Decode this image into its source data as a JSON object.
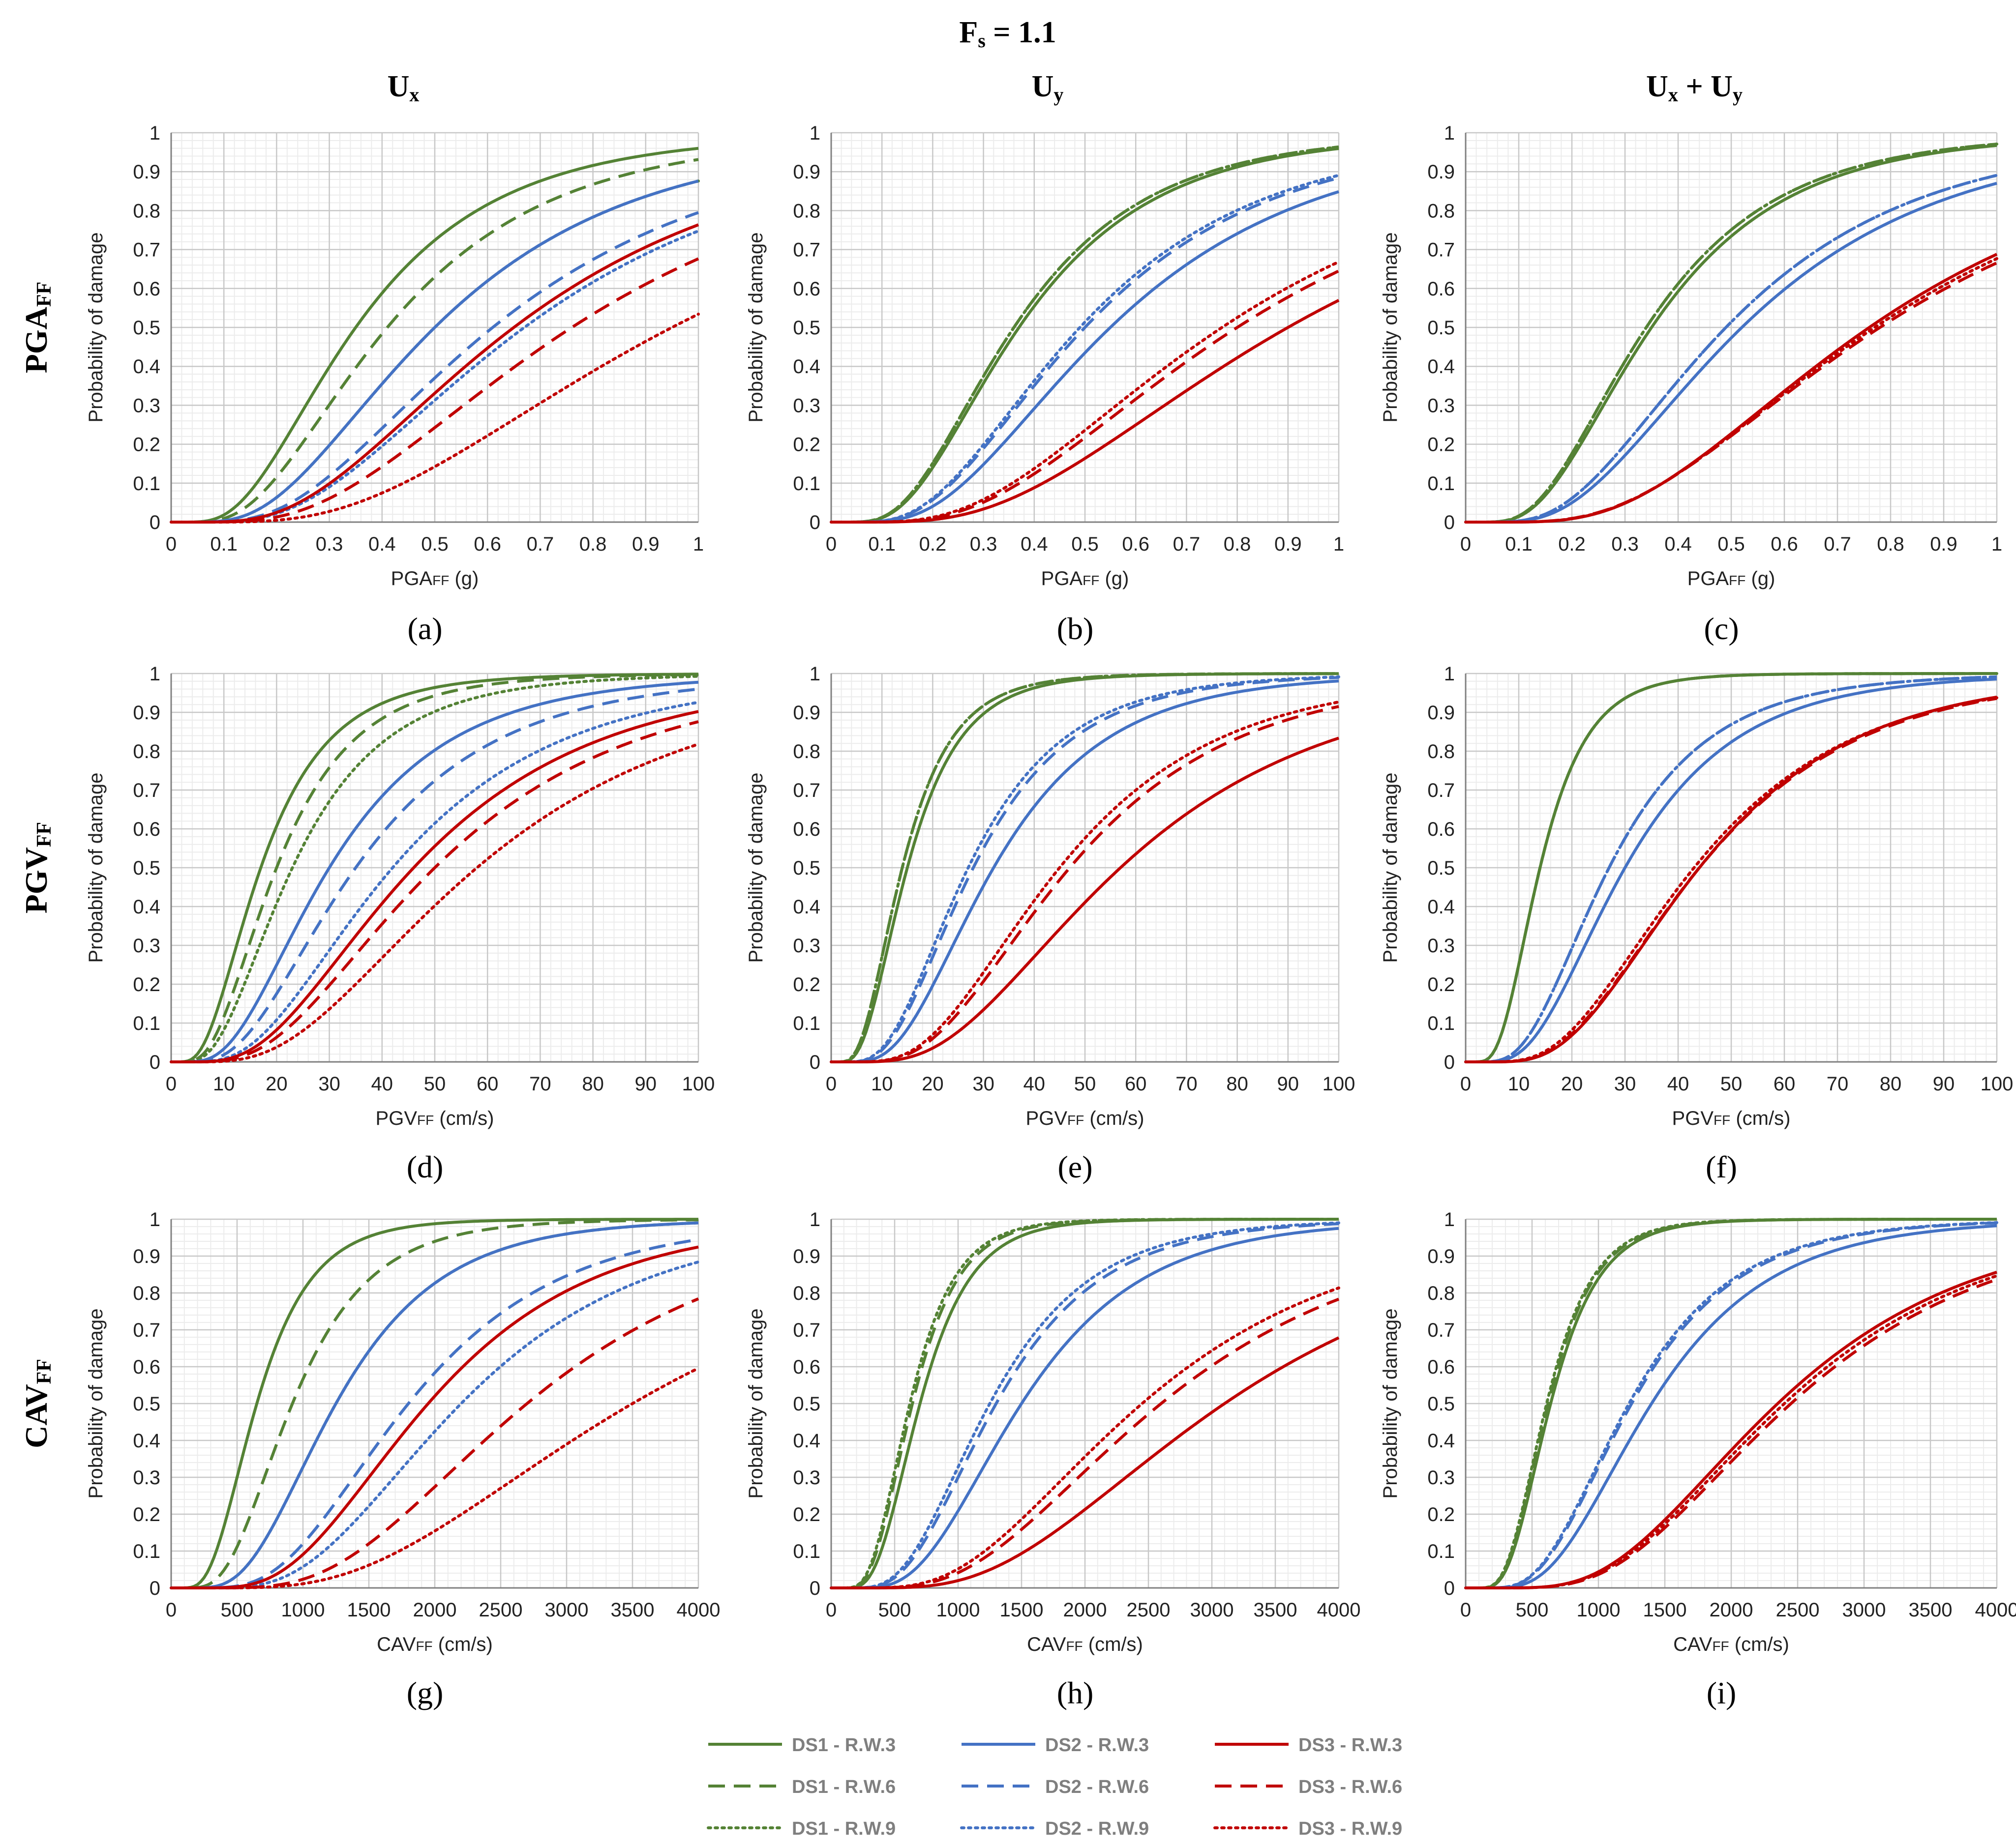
{
  "figure": {
    "title_main": "F",
    "title_sub": "s",
    "title_rest": " = 1.1",
    "columns": [
      {
        "label": "U",
        "sub": "x"
      },
      {
        "label": "U",
        "sub": "y"
      },
      {
        "label": "U",
        "sub": "x",
        "plus": " + U",
        "sub2": "y"
      }
    ],
    "rows": [
      {
        "label": "PGA",
        "sub": "FF"
      },
      {
        "label": "PGV",
        "sub": "FF"
      },
      {
        "label": "CAV",
        "sub": "FF"
      }
    ]
  },
  "colors": {
    "DS1": "#548235",
    "DS2": "#4472C4",
    "DS3": "#C00000",
    "grid_major": "#c8c8c8",
    "grid_minor": "#ececec",
    "axis": "#808080"
  },
  "legend": [
    {
      "label": "DS1 - R.W.3",
      "ds": "DS1",
      "rw": "RW3"
    },
    {
      "label": "DS2 - R.W.3",
      "ds": "DS2",
      "rw": "RW3"
    },
    {
      "label": "DS3 - R.W.3",
      "ds": "DS3",
      "rw": "RW3"
    },
    {
      "label": "DS1 - R.W.6",
      "ds": "DS1",
      "rw": "RW6"
    },
    {
      "label": "DS2 - R.W.6",
      "ds": "DS2",
      "rw": "RW6"
    },
    {
      "label": "DS3 - R.W.6",
      "ds": "DS3",
      "rw": "RW6"
    },
    {
      "label": "DS1 - R.W.9",
      "ds": "DS1",
      "rw": "RW9"
    },
    {
      "label": "DS2 - R.W.9",
      "ds": "DS2",
      "rw": "RW9"
    },
    {
      "label": "DS3 - R.W.9",
      "ds": "DS3",
      "rw": "RW9"
    }
  ],
  "chart_data": [
    {
      "panel": "(a)",
      "type": "line",
      "row": 0,
      "col": 0,
      "xlabel": "PGA",
      "xlabel_sub": "FF",
      "xlabel_rest": " (g)",
      "ylabel": "Probability of damage",
      "xlim": [
        0,
        1
      ],
      "ylim": [
        0,
        1
      ],
      "x_ticks": [
        "0",
        "0.1",
        "0.2",
        "0.3",
        "0.4",
        "0.5",
        "0.6",
        "0.7",
        "0.8",
        "0.9",
        "1"
      ],
      "y_ticks": [
        "0",
        "0.1",
        "0.2",
        "0.3",
        "0.4",
        "0.5",
        "0.6",
        "0.7",
        "0.8",
        "0.9",
        "1"
      ],
      "series": [
        {
          "name": "DS1 - R.W.3",
          "median": 0.35,
          "beta": 0.6
        },
        {
          "name": "DS1 - R.W.6",
          "median": 0.41,
          "beta": 0.6
        },
        {
          "name": "DS1 - R.W.9",
          "median": 0.5,
          "beta": 0.6
        },
        {
          "name": "DS2 - R.W.3",
          "median": 0.5,
          "beta": 0.6
        },
        {
          "name": "DS2 - R.W.6",
          "median": 0.61,
          "beta": 0.6
        },
        {
          "name": "DS2 - R.W.9",
          "median": 0.67,
          "beta": 0.6
        },
        {
          "name": "DS3 - R.W.3",
          "median": 0.65,
          "beta": 0.6
        },
        {
          "name": "DS3 - R.W.6",
          "median": 0.76,
          "beta": 0.6
        },
        {
          "name": "DS3 - R.W.9",
          "median": 0.95,
          "beta": 0.6
        }
      ]
    },
    {
      "panel": "(b)",
      "type": "line",
      "row": 0,
      "col": 1,
      "xlabel": "PGA",
      "xlabel_sub": "FF",
      "xlabel_rest": " (g)",
      "ylabel": "Probability of damage",
      "xlim": [
        0,
        1
      ],
      "ylim": [
        0,
        1
      ],
      "x_ticks": [
        "0",
        "0.1",
        "0.2",
        "0.3",
        "0.4",
        "0.5",
        "0.6",
        "0.7",
        "0.8",
        "0.9",
        "1"
      ],
      "y_ticks": [
        "0",
        "0.1",
        "0.2",
        "0.3",
        "0.4",
        "0.5",
        "0.6",
        "0.7",
        "0.8",
        "0.9",
        "1"
      ],
      "series": [
        {
          "name": "DS1 - R.W.3",
          "median": 0.37,
          "beta": 0.57
        },
        {
          "name": "DS1 - R.W.6",
          "median": 0.36,
          "beta": 0.57
        },
        {
          "name": "DS1 - R.W.9",
          "median": 0.36,
          "beta": 0.57
        },
        {
          "name": "DS2 - R.W.3",
          "median": 0.55,
          "beta": 0.58
        },
        {
          "name": "DS2 - R.W.6",
          "median": 0.5,
          "beta": 0.58
        },
        {
          "name": "DS2 - R.W.9",
          "median": 0.49,
          "beta": 0.58
        },
        {
          "name": "DS3 - R.W.3",
          "median": 0.9,
          "beta": 0.6
        },
        {
          "name": "DS3 - R.W.6",
          "median": 0.8,
          "beta": 0.6
        },
        {
          "name": "DS3 - R.W.9",
          "median": 0.77,
          "beta": 0.6
        }
      ]
    },
    {
      "panel": "(c)",
      "type": "line",
      "row": 0,
      "col": 2,
      "xlabel": "PGA",
      "xlabel_sub": "FF",
      "xlabel_rest": " (g)",
      "ylabel": "Probability of damage",
      "xlim": [
        0,
        1
      ],
      "ylim": [
        0,
        1
      ],
      "x_ticks": [
        "0",
        "0.1",
        "0.2",
        "0.3",
        "0.4",
        "0.5",
        "0.6",
        "0.7",
        "0.8",
        "0.9",
        "1"
      ],
      "y_ticks": [
        "0",
        "0.1",
        "0.2",
        "0.3",
        "0.4",
        "0.5",
        "0.6",
        "0.7",
        "0.8",
        "0.9",
        "1"
      ],
      "series": [
        {
          "name": "DS1 - R.W.3",
          "median": 0.35,
          "beta": 0.57
        },
        {
          "name": "DS1 - R.W.6",
          "median": 0.34,
          "beta": 0.57
        },
        {
          "name": "DS1 - R.W.9",
          "median": 0.34,
          "beta": 0.57
        },
        {
          "name": "DS2 - R.W.3",
          "median": 0.52,
          "beta": 0.58
        },
        {
          "name": "DS2 - R.W.6",
          "median": 0.49,
          "beta": 0.58
        },
        {
          "name": "DS2 - R.W.9",
          "median": 0.49,
          "beta": 0.58
        },
        {
          "name": "DS3 - R.W.3",
          "median": 0.76,
          "beta": 0.56
        },
        {
          "name": "DS3 - R.W.6",
          "median": 0.78,
          "beta": 0.58
        },
        {
          "name": "DS3 - R.W.9",
          "median": 0.77,
          "beta": 0.57
        }
      ]
    },
    {
      "panel": "(d)",
      "type": "line",
      "row": 1,
      "col": 0,
      "xlabel": "PGV",
      "xlabel_sub": "FF",
      "xlabel_rest": " (cm/s)",
      "ylabel": "Probability of damage",
      "xlim": [
        0,
        100
      ],
      "ylim": [
        0,
        1
      ],
      "x_ticks": [
        "0",
        "10",
        "20",
        "30",
        "40",
        "50",
        "60",
        "70",
        "80",
        "90",
        "100"
      ],
      "y_ticks": [
        "0",
        "0.1",
        "0.2",
        "0.3",
        "0.4",
        "0.5",
        "0.6",
        "0.7",
        "0.8",
        "0.9",
        "1"
      ],
      "series": [
        {
          "name": "DS1 - R.W.3",
          "median": 17,
          "beta": 0.6
        },
        {
          "name": "DS1 - R.W.6",
          "median": 20,
          "beta": 0.58
        },
        {
          "name": "DS1 - R.W.9",
          "median": 23,
          "beta": 0.6
        },
        {
          "name": "DS2 - R.W.3",
          "median": 30,
          "beta": 0.6
        },
        {
          "name": "DS2 - R.W.6",
          "median": 35,
          "beta": 0.6
        },
        {
          "name": "DS2 - R.W.9",
          "median": 42,
          "beta": 0.6
        },
        {
          "name": "DS3 - R.W.3",
          "median": 46,
          "beta": 0.6
        },
        {
          "name": "DS3 - R.W.6",
          "median": 50,
          "beta": 0.6
        },
        {
          "name": "DS3 - R.W.9",
          "median": 58,
          "beta": 0.6
        }
      ]
    },
    {
      "panel": "(e)",
      "type": "line",
      "row": 1,
      "col": 1,
      "xlabel": "PGV",
      "xlabel_sub": "FF",
      "xlabel_rest": " (cm/s)",
      "ylabel": "Probability of damage",
      "xlim": [
        0,
        100
      ],
      "ylim": [
        0,
        1
      ],
      "x_ticks": [
        "0",
        "10",
        "20",
        "30",
        "40",
        "50",
        "60",
        "70",
        "80",
        "90",
        "100"
      ],
      "y_ticks": [
        "0",
        "0.1",
        "0.2",
        "0.3",
        "0.4",
        "0.5",
        "0.6",
        "0.7",
        "0.8",
        "0.9",
        "1"
      ],
      "series": [
        {
          "name": "DS1 - R.W.3",
          "median": 15,
          "beta": 0.55
        },
        {
          "name": "DS1 - R.W.6",
          "median": 14,
          "beta": 0.55
        },
        {
          "name": "DS1 - R.W.9",
          "median": 14,
          "beta": 0.55
        },
        {
          "name": "DS2 - R.W.3",
          "median": 32,
          "beta": 0.55
        },
        {
          "name": "DS2 - R.W.6",
          "median": 28,
          "beta": 0.55
        },
        {
          "name": "DS2 - R.W.9",
          "median": 27,
          "beta": 0.55
        },
        {
          "name": "DS3 - R.W.3",
          "median": 57,
          "beta": 0.58
        },
        {
          "name": "DS3 - R.W.6",
          "median": 47,
          "beta": 0.55
        },
        {
          "name": "DS3 - R.W.9",
          "median": 45,
          "beta": 0.55
        }
      ]
    },
    {
      "panel": "(f)",
      "type": "line",
      "row": 1,
      "col": 2,
      "xlabel": "PGV",
      "xlabel_sub": "FF",
      "xlabel_rest": " (cm/s)",
      "ylabel": "Probability of damage",
      "xlim": [
        0,
        100
      ],
      "ylim": [
        0,
        1
      ],
      "x_ticks": [
        "0",
        "10",
        "20",
        "30",
        "40",
        "50",
        "60",
        "70",
        "80",
        "90",
        "100"
      ],
      "y_ticks": [
        "0",
        "0.1",
        "0.2",
        "0.3",
        "0.4",
        "0.5",
        "0.6",
        "0.7",
        "0.8",
        "0.9",
        "1"
      ],
      "series": [
        {
          "name": "DS1 - R.W.3",
          "median": 14,
          "beta": 0.5
        },
        {
          "name": "DS1 - R.W.6",
          "median": 14,
          "beta": 0.5
        },
        {
          "name": "DS1 - R.W.9",
          "median": 14,
          "beta": 0.5
        },
        {
          "name": "DS2 - R.W.3",
          "median": 30,
          "beta": 0.55
        },
        {
          "name": "DS2 - R.W.6",
          "median": 27,
          "beta": 0.55
        },
        {
          "name": "DS2 - R.W.9",
          "median": 27,
          "beta": 0.55
        },
        {
          "name": "DS3 - R.W.3",
          "median": 44,
          "beta": 0.53
        },
        {
          "name": "DS3 - R.W.6",
          "median": 44,
          "beta": 0.54
        },
        {
          "name": "DS3 - R.W.9",
          "median": 43,
          "beta": 0.55
        }
      ]
    },
    {
      "panel": "(g)",
      "type": "line",
      "row": 2,
      "col": 0,
      "xlabel": "CAV",
      "xlabel_sub": "FF",
      "xlabel_rest": " (cm/s)",
      "ylabel": "Probability of damage",
      "xlim": [
        0,
        4000
      ],
      "ylim": [
        0,
        1
      ],
      "x_ticks": [
        "0",
        "500",
        "1000",
        "1500",
        "2000",
        "2500",
        "3000",
        "3500",
        "4000"
      ],
      "y_ticks": [
        "0",
        "0.1",
        "0.2",
        "0.3",
        "0.4",
        "0.5",
        "0.6",
        "0.7",
        "0.8",
        "0.9",
        "1"
      ],
      "series": [
        {
          "name": "DS1 - R.W.3",
          "median": 650,
          "beta": 0.5
        },
        {
          "name": "DS1 - R.W.6",
          "median": 920,
          "beta": 0.5
        },
        {
          "name": "DS1 - R.W.9",
          "median": 1250,
          "beta": 0.5
        },
        {
          "name": "DS2 - R.W.3",
          "median": 1250,
          "beta": 0.5
        },
        {
          "name": "DS2 - R.W.6",
          "median": 1800,
          "beta": 0.5
        },
        {
          "name": "DS2 - R.W.9",
          "median": 2200,
          "beta": 0.5
        },
        {
          "name": "DS3 - R.W.3",
          "median": 1950,
          "beta": 0.5
        },
        {
          "name": "DS3 - R.W.6",
          "median": 2700,
          "beta": 0.5
        },
        {
          "name": "DS3 - R.W.9",
          "median": 3500,
          "beta": 0.55
        }
      ]
    },
    {
      "panel": "(h)",
      "type": "line",
      "row": 2,
      "col": 1,
      "xlabel": "CAV",
      "xlabel_sub": "FF",
      "xlabel_rest": " (cm/s)",
      "ylabel": "Probability of damage",
      "xlim": [
        0,
        4000
      ],
      "ylim": [
        0,
        1
      ],
      "x_ticks": [
        "0",
        "500",
        "1000",
        "1500",
        "2000",
        "2500",
        "3000",
        "3500",
        "4000"
      ],
      "y_ticks": [
        "0",
        "0.1",
        "0.2",
        "0.3",
        "0.4",
        "0.5",
        "0.6",
        "0.7",
        "0.8",
        "0.9",
        "1"
      ],
      "series": [
        {
          "name": "DS1 - R.W.3",
          "median": 700,
          "beta": 0.45
        },
        {
          "name": "DS1 - R.W.6",
          "median": 640,
          "beta": 0.45
        },
        {
          "name": "DS1 - R.W.9",
          "median": 620,
          "beta": 0.45
        },
        {
          "name": "DS2 - R.W.3",
          "median": 1500,
          "beta": 0.5
        },
        {
          "name": "DS2 - R.W.6",
          "median": 1300,
          "beta": 0.5
        },
        {
          "name": "DS2 - R.W.9",
          "median": 1250,
          "beta": 0.5
        },
        {
          "name": "DS3 - R.W.3",
          "median": 3100,
          "beta": 0.55
        },
        {
          "name": "DS3 - R.W.6",
          "median": 2600,
          "beta": 0.55
        },
        {
          "name": "DS3 - R.W.9",
          "median": 2450,
          "beta": 0.55
        }
      ]
    },
    {
      "panel": "(i)",
      "type": "line",
      "row": 2,
      "col": 2,
      "xlabel": "CAV",
      "xlabel_sub": "FF",
      "xlabel_rest": " (cm/s)",
      "ylabel": "Probability of damage",
      "xlim": [
        0,
        4000
      ],
      "ylim": [
        0,
        1
      ],
      "x_ticks": [
        "0",
        "500",
        "1000",
        "1500",
        "2000",
        "2500",
        "3000",
        "3500",
        "4000"
      ],
      "y_ticks": [
        "0",
        "0.1",
        "0.2",
        "0.3",
        "0.4",
        "0.5",
        "0.6",
        "0.7",
        "0.8",
        "0.9",
        "1"
      ],
      "series": [
        {
          "name": "DS1 - R.W.3",
          "median": 640,
          "beta": 0.45
        },
        {
          "name": "DS1 - R.W.6",
          "median": 620,
          "beta": 0.45
        },
        {
          "name": "DS1 - R.W.9",
          "median": 610,
          "beta": 0.45
        },
        {
          "name": "DS2 - R.W.3",
          "median": 1400,
          "beta": 0.5
        },
        {
          "name": "DS2 - R.W.6",
          "median": 1250,
          "beta": 0.5
        },
        {
          "name": "DS2 - R.W.9",
          "median": 1230,
          "beta": 0.5
        },
        {
          "name": "DS3 - R.W.3",
          "median": 2350,
          "beta": 0.5
        },
        {
          "name": "DS3 - R.W.6",
          "median": 2450,
          "beta": 0.5
        },
        {
          "name": "DS3 - R.W.9",
          "median": 2400,
          "beta": 0.5
        }
      ]
    }
  ]
}
